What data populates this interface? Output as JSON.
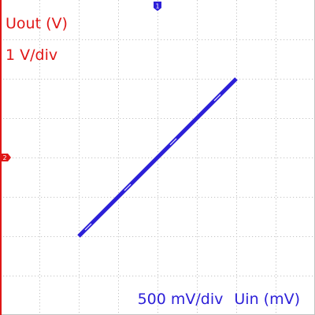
{
  "colors": {
    "ch1": "#2c1fd8",
    "ch2": "#e01717",
    "grid": "#c4c4c4",
    "background": "#ffffff"
  },
  "chart_data": {
    "type": "line",
    "mode": "xy",
    "x_div": 500,
    "y_div": 1,
    "x_divisions": 8,
    "y_divisions": 8,
    "xlim": [
      -2000,
      2000
    ],
    "ylim": [
      -4,
      4
    ],
    "x_scale_label": "500 mV/div",
    "xlabel": "Uin (mV)",
    "y_scale_label": "1 V/div",
    "ylabel": "Uout (V)",
    "grid": true,
    "x_marker": "1",
    "y_marker": "2",
    "series": [
      {
        "x": [
          -1000,
          -500,
          0,
          500,
          1000
        ],
        "y": [
          -2,
          -1,
          0,
          1,
          2
        ]
      }
    ]
  }
}
